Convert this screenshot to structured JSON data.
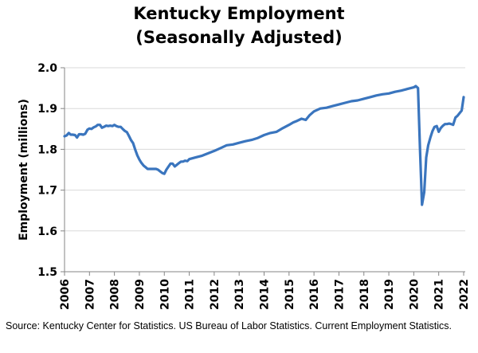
{
  "chart_data": {
    "type": "line",
    "title": [
      "Kentucky Employment",
      "(Seasonally Adjusted)"
    ],
    "xlabel": "",
    "ylabel": "Employment (millions)",
    "ylim": [
      1.5,
      2.0
    ],
    "xlim": [
      2006,
      2022
    ],
    "yticks": [
      "1.5",
      "1.6",
      "1.7",
      "1.8",
      "1.9",
      "2.0"
    ],
    "xticks": [
      "2006",
      "2007",
      "2008",
      "2009",
      "2010",
      "2011",
      "2012",
      "2013",
      "2014",
      "2015",
      "2016",
      "2017",
      "2018",
      "2019",
      "2020",
      "2021",
      "2022"
    ],
    "grid": true,
    "line_color": "#3A75BE",
    "series": [
      {
        "name": "Kentucky Employment",
        "x": [
          2006.0,
          2006.08,
          2006.17,
          2006.25,
          2006.33,
          2006.42,
          2006.5,
          2006.58,
          2006.67,
          2006.75,
          2006.83,
          2006.92,
          2007.0,
          2007.08,
          2007.17,
          2007.25,
          2007.33,
          2007.42,
          2007.5,
          2007.58,
          2007.67,
          2007.75,
          2007.83,
          2007.92,
          2008.0,
          2008.08,
          2008.17,
          2008.25,
          2008.33,
          2008.42,
          2008.5,
          2008.58,
          2008.67,
          2008.75,
          2008.83,
          2008.92,
          2009.0,
          2009.08,
          2009.17,
          2009.25,
          2009.33,
          2009.42,
          2009.5,
          2009.58,
          2009.67,
          2009.75,
          2009.83,
          2009.92,
          2010.0,
          2010.08,
          2010.17,
          2010.25,
          2010.33,
          2010.42,
          2010.5,
          2010.58,
          2010.67,
          2010.75,
          2010.83,
          2010.92,
          2011.0,
          2011.25,
          2011.5,
          2011.75,
          2012.0,
          2012.25,
          2012.5,
          2012.75,
          2013.0,
          2013.25,
          2013.5,
          2013.75,
          2014.0,
          2014.25,
          2014.5,
          2014.75,
          2015.0,
          2015.17,
          2015.33,
          2015.5,
          2015.67,
          2015.83,
          2016.0,
          2016.25,
          2016.5,
          2016.75,
          2017.0,
          2017.25,
          2017.5,
          2017.75,
          2018.0,
          2018.25,
          2018.5,
          2018.75,
          2019.0,
          2019.25,
          2019.5,
          2019.75,
          2020.0,
          2020.08,
          2020.17,
          2020.25,
          2020.33,
          2020.42,
          2020.5,
          2020.58,
          2020.67,
          2020.75,
          2020.83,
          2020.92,
          2021.0,
          2021.08,
          2021.17,
          2021.25,
          2021.33,
          2021.42,
          2021.5,
          2021.58,
          2021.67,
          2021.75,
          2021.83,
          2021.92,
          2022.0
        ],
        "y": [
          1.832,
          1.834,
          1.84,
          1.836,
          1.836,
          1.835,
          1.829,
          1.837,
          1.837,
          1.836,
          1.838,
          1.848,
          1.851,
          1.85,
          1.854,
          1.856,
          1.86,
          1.86,
          1.853,
          1.855,
          1.858,
          1.857,
          1.858,
          1.857,
          1.86,
          1.857,
          1.855,
          1.855,
          1.85,
          1.845,
          1.842,
          1.833,
          1.822,
          1.815,
          1.8,
          1.785,
          1.775,
          1.767,
          1.76,
          1.756,
          1.752,
          1.752,
          1.752,
          1.752,
          1.752,
          1.75,
          1.746,
          1.742,
          1.74,
          1.75,
          1.758,
          1.765,
          1.765,
          1.758,
          1.762,
          1.766,
          1.77,
          1.77,
          1.772,
          1.771,
          1.776,
          1.78,
          1.784,
          1.79,
          1.796,
          1.803,
          1.81,
          1.812,
          1.816,
          1.82,
          1.823,
          1.828,
          1.835,
          1.84,
          1.843,
          1.852,
          1.86,
          1.866,
          1.87,
          1.875,
          1.872,
          1.884,
          1.893,
          1.9,
          1.902,
          1.906,
          1.91,
          1.914,
          1.918,
          1.92,
          1.924,
          1.928,
          1.932,
          1.935,
          1.937,
          1.941,
          1.944,
          1.948,
          1.952,
          1.955,
          1.95,
          1.8,
          1.664,
          1.695,
          1.78,
          1.81,
          1.83,
          1.845,
          1.855,
          1.857,
          1.843,
          1.852,
          1.858,
          1.862,
          1.862,
          1.863,
          1.862,
          1.86,
          1.878,
          1.882,
          1.888,
          1.895,
          1.928
        ]
      }
    ]
  },
  "source": "Source: Kentucky Center for Statistics. US Bureau of Labor Statistics. Current Employment Statistics."
}
